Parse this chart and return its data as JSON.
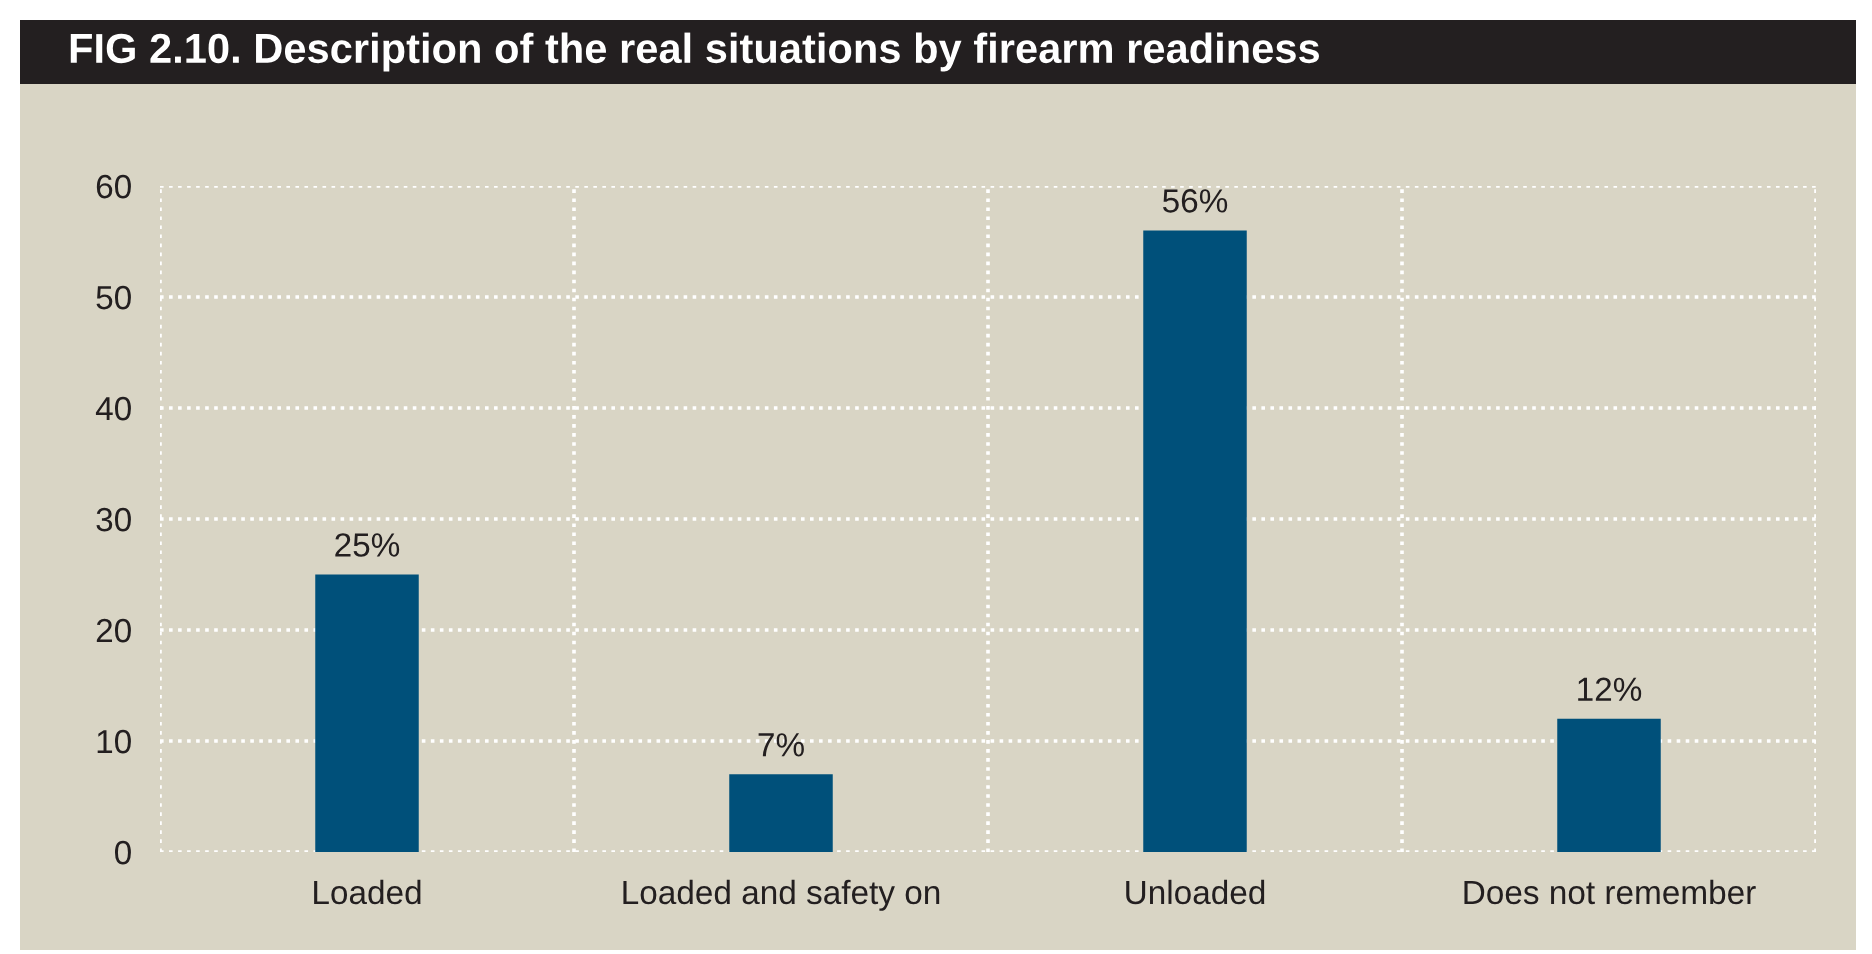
{
  "chart_data": {
    "type": "bar",
    "title": "FIG 2.10. Description of the real situations by firearm readiness",
    "categories": [
      "Loaded",
      "Loaded and safety on",
      "Unloaded",
      "Does not remember"
    ],
    "values": [
      25,
      7,
      56,
      12
    ],
    "color": "#00507a",
    "value_labels": [
      "25%",
      "7%",
      "56%",
      "12%"
    ],
    "ylim": [
      0,
      60
    ],
    "yticks": [
      0,
      10,
      20,
      30,
      40,
      50,
      60
    ],
    "grid": true
  }
}
